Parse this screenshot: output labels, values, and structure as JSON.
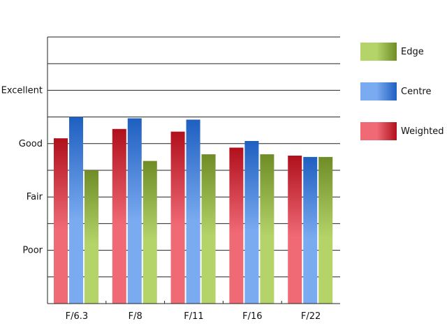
{
  "chart_data": {
    "type": "bar",
    "title": "",
    "xlabel": "",
    "ylabel": "",
    "categories": [
      "F/6.3",
      "F/8",
      "F/11",
      "F/16",
      "F/22"
    ],
    "y_tick_labels": [
      "Poor",
      "Fair",
      "Good",
      "Excellent"
    ],
    "y_tick_values": [
      2,
      4,
      6,
      8
    ],
    "ylim": [
      0,
      10
    ],
    "grid": true,
    "legend_position": "right",
    "series": [
      {
        "name": "Weighted",
        "values": [
          6.2,
          6.55,
          6.45,
          5.85,
          5.55
        ],
        "color_light": "#f06a76",
        "color_dark": "#b0101c"
      },
      {
        "name": "Centre",
        "values": [
          7.0,
          6.95,
          6.9,
          6.1,
          5.5
        ],
        "color_light": "#7aaaf0",
        "color_dark": "#1e5fc0"
      },
      {
        "name": "Edge",
        "values": [
          5.0,
          5.35,
          5.6,
          5.6,
          5.5
        ],
        "color_light": "#b4d46a",
        "color_dark": "#6f8c26"
      }
    ],
    "legend_order": [
      "Edge",
      "Centre",
      "Weighted"
    ]
  }
}
